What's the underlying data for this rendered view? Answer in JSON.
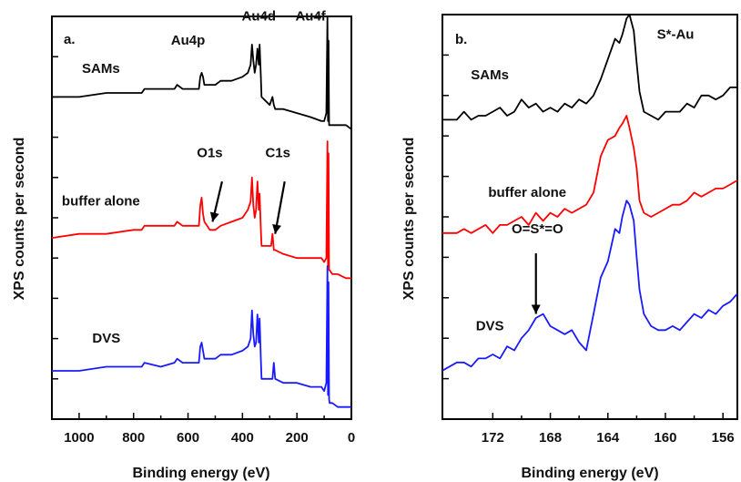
{
  "colors": {
    "black": "#000000",
    "red": "#ff0000",
    "blue": "#1a1aff"
  },
  "chart_data": [
    {
      "type": "line",
      "panel_label": "a.",
      "xlabel": "Binding energy (eV)",
      "ylabel": "XPS counts per second",
      "xlim": [
        1100,
        0
      ],
      "x_reversed": true,
      "xticks": [
        1000,
        800,
        600,
        400,
        200,
        0
      ],
      "ylim": [
        0,
        10
      ],
      "y_tick_values": false,
      "series": [
        {
          "name": "SAMs",
          "color": "#000000",
          "x": [
            1100,
            1000,
            900,
            800,
            770,
            760,
            700,
            650,
            640,
            620,
            600,
            560,
            555,
            550,
            545,
            540,
            520,
            500,
            480,
            440,
            400,
            380,
            370,
            365,
            360,
            355,
            350,
            345,
            340,
            337,
            333,
            330,
            300,
            290,
            285,
            280,
            250,
            200,
            150,
            110,
            100,
            92,
            88,
            86,
            84,
            82,
            80,
            70,
            50,
            20,
            0
          ],
          "y": [
            8.0,
            8.0,
            8.1,
            8.1,
            8.1,
            8.2,
            8.2,
            8.2,
            8.3,
            8.2,
            8.2,
            8.2,
            8.5,
            8.6,
            8.5,
            8.3,
            8.3,
            8.3,
            8.4,
            8.4,
            8.5,
            8.6,
            8.8,
            9.3,
            8.9,
            8.6,
            8.8,
            9.2,
            8.8,
            9.3,
            8.6,
            8.0,
            7.8,
            8.0,
            7.8,
            7.7,
            7.7,
            7.6,
            7.5,
            7.4,
            7.4,
            7.6,
            10.0,
            7.4,
            9.4,
            7.3,
            7.3,
            7.3,
            7.3,
            7.3,
            7.2
          ]
        },
        {
          "name": "buffer alone",
          "color": "#ff0000",
          "x": [
            1100,
            1000,
            900,
            800,
            770,
            760,
            700,
            650,
            640,
            620,
            600,
            560,
            555,
            550,
            545,
            540,
            530,
            520,
            500,
            480,
            440,
            400,
            380,
            370,
            365,
            360,
            355,
            350,
            345,
            340,
            337,
            333,
            330,
            300,
            295,
            290,
            285,
            280,
            250,
            200,
            150,
            110,
            100,
            92,
            88,
            86,
            84,
            82,
            80,
            70,
            50,
            20,
            0
          ],
          "y": [
            4.5,
            4.6,
            4.6,
            4.7,
            4.7,
            4.8,
            4.8,
            4.8,
            4.9,
            4.8,
            4.8,
            4.8,
            5.3,
            5.5,
            5.1,
            4.9,
            4.8,
            4.7,
            4.7,
            4.8,
            4.9,
            5.0,
            5.2,
            5.4,
            6.0,
            5.3,
            5.0,
            5.2,
            5.9,
            5.2,
            5.6,
            4.8,
            4.3,
            4.3,
            4.3,
            4.6,
            4.2,
            4.2,
            4.1,
            4.0,
            4.0,
            4.0,
            3.9,
            4.0,
            6.9,
            3.8,
            6.6,
            3.7,
            3.7,
            3.6,
            3.6,
            3.5,
            3.5
          ]
        },
        {
          "name": "DVS",
          "color": "#1a1aff",
          "x": [
            1100,
            1000,
            900,
            800,
            770,
            760,
            700,
            650,
            640,
            620,
            600,
            560,
            555,
            550,
            545,
            540,
            520,
            500,
            480,
            440,
            400,
            380,
            370,
            365,
            360,
            355,
            350,
            345,
            340,
            337,
            333,
            330,
            300,
            295,
            290,
            285,
            280,
            250,
            200,
            150,
            110,
            100,
            92,
            88,
            86,
            84,
            82,
            80,
            70,
            50,
            20,
            0
          ],
          "y": [
            1.2,
            1.2,
            1.3,
            1.3,
            1.3,
            1.4,
            1.3,
            1.4,
            1.5,
            1.4,
            1.4,
            1.4,
            1.8,
            1.9,
            1.7,
            1.5,
            1.5,
            1.5,
            1.6,
            1.6,
            1.7,
            1.8,
            2.0,
            2.7,
            2.1,
            1.8,
            1.9,
            2.6,
            1.9,
            2.5,
            1.6,
            1.0,
            1.0,
            1.0,
            1.0,
            1.4,
            1.0,
            0.9,
            0.9,
            0.8,
            0.8,
            0.7,
            0.9,
            3.8,
            0.6,
            3.4,
            0.5,
            0.4,
            0.4,
            0.3,
            0.3,
            0.3
          ]
        }
      ],
      "annotations": [
        {
          "text": "Au4p",
          "x": 600,
          "y": 9.3
        },
        {
          "text": "Au4d",
          "x": 340,
          "y": 9.9
        },
        {
          "text": "Au4f",
          "x": 150,
          "y": 9.9
        },
        {
          "text": "O1s",
          "x": 520,
          "y": 6.5
        },
        {
          "text": "C1s",
          "x": 270,
          "y": 6.5
        },
        {
          "text": "SAMs",
          "x": 920,
          "y": 8.6
        },
        {
          "text": "buffer alone",
          "x": 920,
          "y": 5.3
        },
        {
          "text": "DVS",
          "x": 900,
          "y": 1.9
        }
      ],
      "arrows": [
        {
          "from": [
            475,
            5.9
          ],
          "to": [
            510,
            4.9
          ]
        },
        {
          "from": [
            245,
            5.9
          ],
          "to": [
            280,
            4.6
          ]
        }
      ]
    },
    {
      "type": "line",
      "panel_label": "b.",
      "xlabel": "Binding energy (eV)",
      "ylabel": "XPS counts per second",
      "xlim": [
        175.5,
        155
      ],
      "x_reversed": true,
      "xticks": [
        172,
        168,
        164,
        160,
        156
      ],
      "ylim": [
        0,
        10
      ],
      "y_tick_values": false,
      "series": [
        {
          "name": "SAMs",
          "color": "#000000",
          "x": [
            175.5,
            174.5,
            174,
            173.5,
            173,
            172.5,
            172,
            171.5,
            171,
            170.5,
            170,
            169.5,
            169,
            168.5,
            168,
            167.5,
            167,
            166.5,
            166,
            165.5,
            165,
            164.5,
            164,
            163.5,
            163.2,
            163,
            162.7,
            162.5,
            162.2,
            162,
            161.8,
            161.5,
            161,
            160.5,
            160,
            159.5,
            159,
            158.5,
            158,
            157.5,
            157,
            156.5,
            156,
            155.5,
            155
          ],
          "y": [
            7.4,
            7.4,
            7.6,
            7.4,
            7.5,
            7.5,
            7.6,
            7.7,
            7.5,
            7.6,
            7.9,
            7.7,
            7.8,
            7.6,
            7.7,
            7.6,
            7.8,
            7.7,
            7.9,
            7.8,
            8.0,
            8.4,
            8.9,
            9.4,
            9.3,
            9.5,
            9.9,
            10.0,
            9.6,
            8.8,
            8.1,
            7.6,
            7.5,
            7.4,
            7.6,
            7.6,
            7.6,
            7.8,
            7.7,
            8.0,
            8.0,
            7.9,
            8.0,
            8.2,
            8.2
          ]
        },
        {
          "name": "buffer alone",
          "color": "#ff0000",
          "x": [
            175.5,
            174.5,
            174,
            173.5,
            173,
            172.5,
            172,
            171.5,
            171,
            170.5,
            170,
            169.5,
            169,
            168.5,
            168,
            167.5,
            167,
            166.5,
            166,
            165.5,
            165,
            164.5,
            164,
            163.5,
            163.2,
            163,
            162.7,
            162.5,
            162.2,
            162,
            161.8,
            161.5,
            161,
            160.5,
            160,
            159.5,
            159,
            158.5,
            158,
            157.5,
            157,
            156.5,
            156,
            155.5,
            155
          ],
          "y": [
            4.6,
            4.6,
            4.7,
            4.6,
            4.7,
            4.8,
            4.6,
            4.8,
            4.8,
            4.9,
            5.0,
            4.8,
            5.1,
            4.9,
            5.1,
            5.0,
            5.2,
            5.1,
            5.2,
            5.3,
            5.6,
            6.5,
            6.9,
            7.0,
            7.2,
            7.3,
            7.5,
            7.2,
            6.7,
            6.2,
            5.4,
            5.1,
            5.0,
            5.1,
            5.2,
            5.3,
            5.3,
            5.4,
            5.6,
            5.5,
            5.6,
            5.7,
            5.7,
            5.8,
            5.9
          ]
        },
        {
          "name": "DVS",
          "color": "#1a1aff",
          "x": [
            175.5,
            175,
            174.5,
            174,
            173.5,
            173,
            172.5,
            172,
            171.5,
            171,
            170.5,
            170,
            169.5,
            169,
            168.5,
            168,
            167.5,
            167,
            166.5,
            166,
            165.5,
            165,
            164.5,
            164,
            163.5,
            163.2,
            163,
            162.7,
            162.5,
            162.2,
            162,
            161.8,
            161.5,
            161,
            160.5,
            160,
            159.5,
            159,
            158.5,
            158,
            157.5,
            157,
            156.5,
            156,
            155.5,
            155
          ],
          "y": [
            1.2,
            1.3,
            1.4,
            1.4,
            1.3,
            1.5,
            1.5,
            1.6,
            1.5,
            1.8,
            1.7,
            2.0,
            2.2,
            2.5,
            2.6,
            2.3,
            2.2,
            2.1,
            2.2,
            1.9,
            1.7,
            2.6,
            3.5,
            3.9,
            4.7,
            4.6,
            5.0,
            5.4,
            5.3,
            4.9,
            4.0,
            3.2,
            2.6,
            2.3,
            2.2,
            2.2,
            2.3,
            2.2,
            2.4,
            2.6,
            2.5,
            2.7,
            2.6,
            2.8,
            2.9,
            3.1
          ]
        }
      ],
      "annotations": [
        {
          "text": "S*-Au",
          "x": 159.3,
          "y": 9.4
        },
        {
          "text": "SAMs",
          "x": 172.2,
          "y": 8.4
        },
        {
          "text": "buffer alone",
          "x": 169.6,
          "y": 5.5
        },
        {
          "text": "O=S*=O",
          "x": 168.9,
          "y": 4.6
        },
        {
          "text": "DVS",
          "x": 172.2,
          "y": 2.2
        }
      ],
      "arrows": [
        {
          "from": [
            169.0,
            4.1
          ],
          "to": [
            169.0,
            2.6
          ]
        }
      ]
    }
  ]
}
